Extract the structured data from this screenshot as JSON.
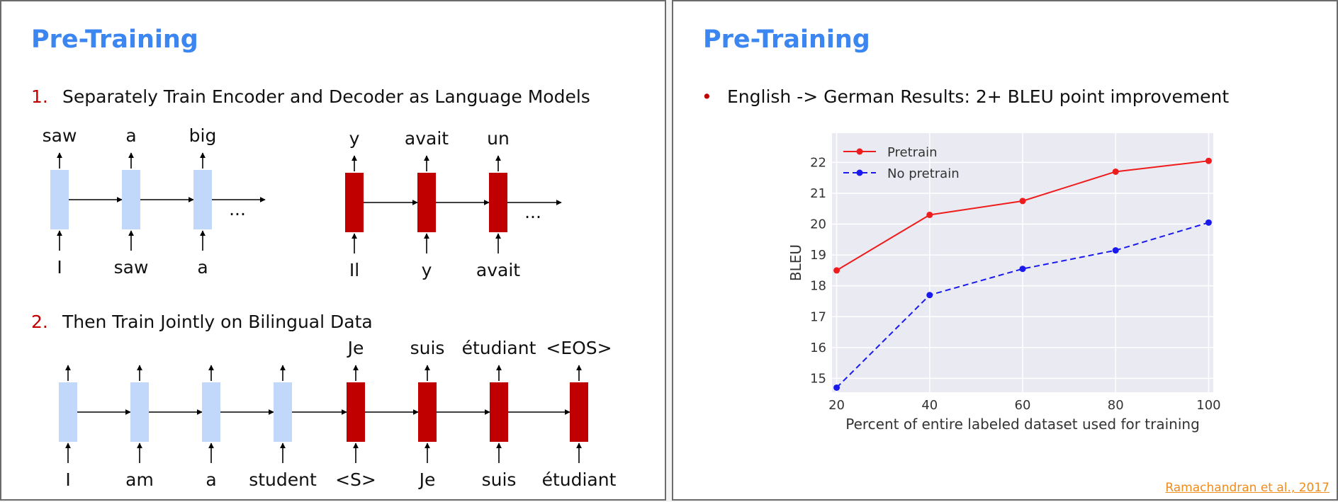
{
  "left_slide": {
    "title": "Pre-Training",
    "steps": [
      {
        "number": "1.",
        "text": "Separately Train Encoder and Decoder as Language Models"
      },
      {
        "number": "2.",
        "text": "Then Train Jointly on Bilingual Data"
      }
    ],
    "ellipsis": "...",
    "encoder_lm": {
      "inputs": [
        "I",
        "saw",
        "a"
      ],
      "outputs": [
        "saw",
        "a",
        "big"
      ]
    },
    "decoder_lm": {
      "inputs": [
        "Il",
        "y",
        "avait"
      ],
      "outputs": [
        "y",
        "avait",
        "un"
      ]
    },
    "joint": {
      "encoder_inputs": [
        "I",
        "am",
        "a",
        "student"
      ],
      "decoder_inputs": [
        "<S>",
        "Je",
        "suis",
        "étudiant"
      ],
      "decoder_outputs": [
        "Je",
        "suis",
        "étudiant",
        "<EOS>"
      ]
    },
    "colors": {
      "encoder": "#c2d8fa",
      "decoder": "#c00000"
    }
  },
  "right_slide": {
    "title": "Pre-Training",
    "bullet": "English -> German Results: 2+ BLEU point improvement",
    "citation": "Ramachandran et al., 2017"
  },
  "chart_data": {
    "type": "line",
    "x": [
      20,
      40,
      60,
      80,
      100
    ],
    "series": [
      {
        "name": "Pretrain",
        "values": [
          18.5,
          20.3,
          20.75,
          21.7,
          22.05
        ],
        "color": "#ee1c1c",
        "style": "solid"
      },
      {
        "name": "No pretrain",
        "values": [
          14.7,
          17.7,
          18.55,
          19.15,
          20.05
        ],
        "color": "#1a1aee",
        "style": "dashed"
      }
    ],
    "xticks": [
      20,
      40,
      60,
      80,
      100
    ],
    "yticks": [
      15,
      16,
      17,
      18,
      19,
      20,
      21,
      22
    ],
    "xlim": [
      19,
      101
    ],
    "ylim": [
      14.55,
      22.95
    ],
    "xlabel": "Percent of entire labeled dataset used for training",
    "ylabel": "BLEU",
    "grid": true,
    "legend": "top-left"
  }
}
